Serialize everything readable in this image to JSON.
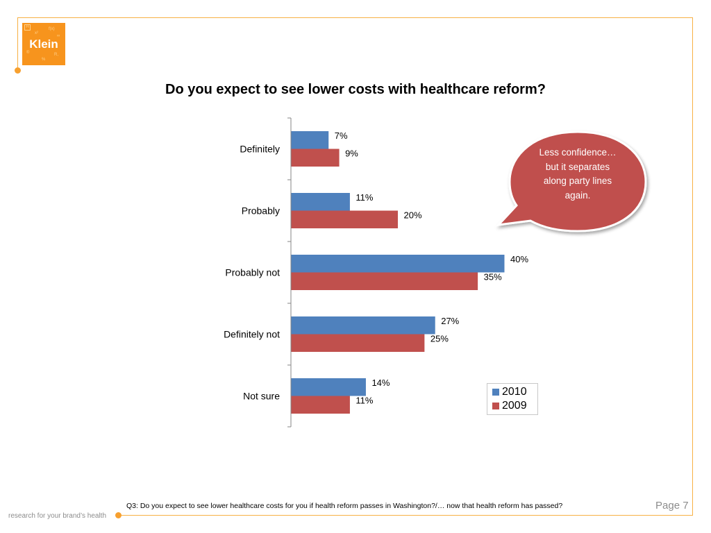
{
  "logo": {
    "text": "Klein",
    "deco": [
      "H",
      "x²",
      "f(x)",
      "∞",
      "®",
      "R,",
      "%"
    ]
  },
  "title": "Do you expect to see lower costs with healthcare reform?",
  "callout": {
    "text": "Less confidence… but it separates along party lines again."
  },
  "footer": {
    "note": "Q3: Do you expect to see lower healthcare costs for you if health reform passes in Washington?/… now that health reform has passed?",
    "page": "Page 7",
    "tagline": "research for your brand’s health"
  },
  "colors": {
    "frame": "#f7b043",
    "logo_bg": "#f7941d",
    "series_2010": "#4f81bd",
    "series_2009": "#c0504d"
  },
  "chart_data": {
    "type": "bar",
    "orientation": "horizontal",
    "title": "Do you expect to see lower costs with healthcare reform?",
    "xlabel": "",
    "ylabel": "",
    "xlim": [
      0,
      40
    ],
    "grid": false,
    "legend_position": "bottom-right",
    "categories": [
      "Definitely",
      "Probably",
      "Probably not",
      "Definitely not",
      "Not sure"
    ],
    "series": [
      {
        "name": "2010",
        "color": "#4f81bd",
        "values": [
          7,
          11,
          40,
          27,
          14
        ],
        "labels": [
          "7%",
          "11%",
          "40%",
          "27%",
          "14%"
        ]
      },
      {
        "name": "2009",
        "color": "#c0504d",
        "values": [
          9,
          20,
          35,
          25,
          11
        ],
        "labels": [
          "9%",
          "20%",
          "35%",
          "25%",
          "11%"
        ]
      }
    ]
  }
}
